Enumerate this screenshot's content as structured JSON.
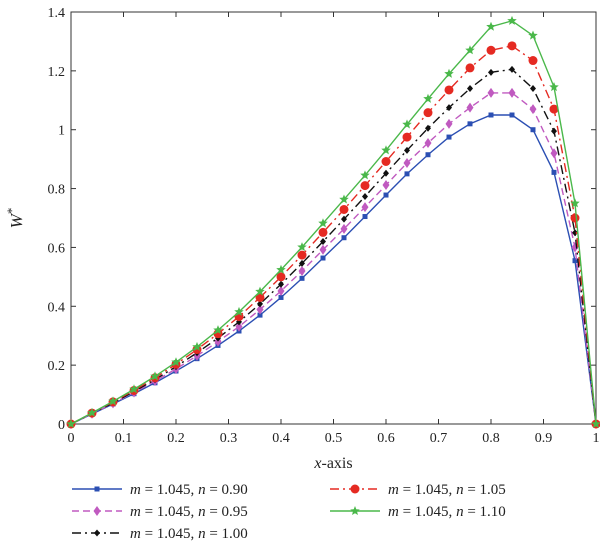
{
  "chart_data": {
    "type": "line",
    "xlabel": "x-axis",
    "ylabel": "W*",
    "xlim": [
      0,
      1
    ],
    "ylim": [
      0,
      1.4
    ],
    "xticks": [
      0,
      0.1,
      0.2,
      0.3,
      0.4,
      0.5,
      0.6,
      0.7,
      0.8,
      0.9,
      1
    ],
    "xtick_labels": [
      "0",
      "0.1",
      "0.2",
      "0.3",
      "0.4",
      "0.5",
      "0.6",
      "0.7",
      "0.8",
      "0.9",
      "1"
    ],
    "yticks": [
      0,
      0.2,
      0.4,
      0.6,
      0.8,
      1,
      1.2,
      1.4
    ],
    "ytick_labels": [
      "0",
      "0.2",
      "0.4",
      "0.6",
      "0.8",
      "1",
      "1.2",
      "1.4"
    ],
    "grid": false,
    "legend_position": "bottom",
    "x": [
      0,
      0.04,
      0.08,
      0.12,
      0.16,
      0.2,
      0.24,
      0.28,
      0.32,
      0.36,
      0.4,
      0.44,
      0.48,
      0.52,
      0.56,
      0.6,
      0.64,
      0.68,
      0.72,
      0.76,
      0.8,
      0.84,
      0.88,
      0.92,
      0.96,
      1
    ],
    "series": [
      {
        "name_parts": [
          "m",
          " = 1.045, ",
          "n",
          " = 0.90"
        ],
        "color": "#2b4fb3",
        "line": "solid",
        "marker": "square",
        "values": [
          0,
          0.034,
          0.068,
          0.103,
          0.14,
          0.18,
          0.222,
          0.267,
          0.316,
          0.37,
          0.43,
          0.495,
          0.564,
          0.633,
          0.705,
          0.778,
          0.85,
          0.915,
          0.975,
          1.02,
          1.05,
          1.05,
          1.0,
          0.855,
          0.555,
          0
        ]
      },
      {
        "name_parts": [
          "m",
          " = 1.045, ",
          "n",
          " = 0.95"
        ],
        "color": "#c05ac0",
        "line": "dashed",
        "marker": "diamond",
        "values": [
          0,
          0.035,
          0.07,
          0.107,
          0.146,
          0.187,
          0.232,
          0.28,
          0.331,
          0.389,
          0.452,
          0.52,
          0.592,
          0.663,
          0.737,
          0.812,
          0.887,
          0.955,
          1.02,
          1.075,
          1.125,
          1.125,
          1.07,
          0.92,
          0.6,
          0
        ]
      },
      {
        "name_parts": [
          "m",
          " = 1.045, ",
          "n",
          " = 1.00"
        ],
        "color": "#111111",
        "line": "dashdot",
        "marker": "small-diamond",
        "values": [
          0,
          0.036,
          0.072,
          0.11,
          0.151,
          0.195,
          0.242,
          0.292,
          0.347,
          0.408,
          0.475,
          0.546,
          0.62,
          0.696,
          0.773,
          0.852,
          0.93,
          1.005,
          1.075,
          1.14,
          1.195,
          1.205,
          1.14,
          0.995,
          0.65,
          0
        ]
      },
      {
        "name_parts": [
          "m",
          " = 1.045, ",
          "n",
          " = 1.05"
        ],
        "color": "#e52a22",
        "line": "dashdot",
        "marker": "circle",
        "values": [
          0,
          0.037,
          0.075,
          0.114,
          0.157,
          0.203,
          0.253,
          0.307,
          0.365,
          0.43,
          0.5,
          0.574,
          0.651,
          0.729,
          0.81,
          0.892,
          0.975,
          1.058,
          1.135,
          1.21,
          1.27,
          1.285,
          1.235,
          1.07,
          0.7,
          0
        ]
      },
      {
        "name_parts": [
          "m",
          " = 1.045, ",
          "n",
          " = 1.10"
        ],
        "color": "#4ab84a",
        "line": "solid",
        "marker": "star",
        "values": [
          0,
          0.038,
          0.077,
          0.118,
          0.162,
          0.21,
          0.262,
          0.319,
          0.381,
          0.45,
          0.524,
          0.601,
          0.682,
          0.763,
          0.845,
          0.93,
          1.018,
          1.105,
          1.19,
          1.27,
          1.35,
          1.37,
          1.32,
          1.145,
          0.75,
          0
        ]
      }
    ]
  }
}
